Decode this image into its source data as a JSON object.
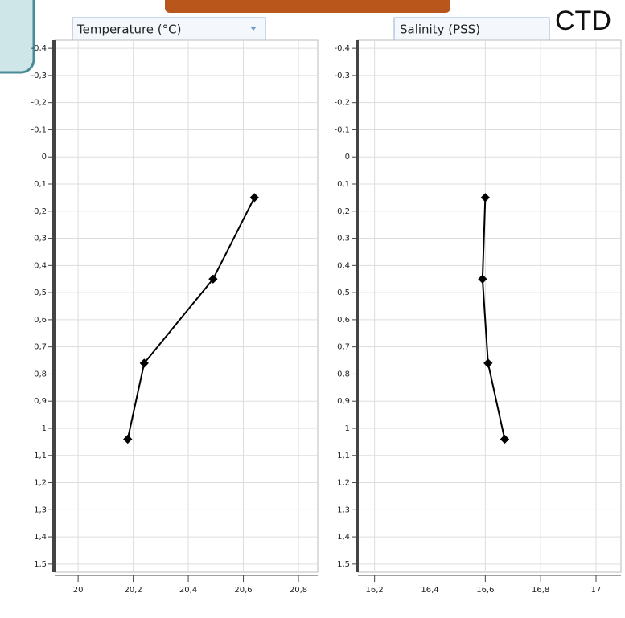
{
  "heading": "CTD",
  "chart_data": [
    {
      "type": "line",
      "title": "Temperature (°C)",
      "series": [
        {
          "color": "#000000",
          "x": [
            20.64,
            20.49,
            20.24,
            20.18
          ],
          "y": [
            0.15,
            0.45,
            0.76,
            1.04
          ]
        }
      ],
      "xlim": [
        19.915,
        20.87
      ],
      "ylim": [
        -0.43,
        1.53
      ],
      "reverse_y": true,
      "grid": true,
      "xticks": [
        20,
        {
          "value": 20.2,
          "label": "20,2"
        },
        {
          "value": 20.4,
          "label": "20,4"
        },
        {
          "value": 20.6,
          "label": "20,6"
        },
        {
          "value": 20.8,
          "label": "20,8"
        }
      ],
      "yticks": [
        {
          "value": -0.4,
          "label": "-0,4"
        },
        {
          "value": -0.3,
          "label": "-0,3"
        },
        {
          "value": -0.2,
          "label": "-0,2"
        },
        {
          "value": -0.1,
          "label": "-0,1"
        },
        0,
        {
          "value": 0.1,
          "label": "0,1"
        },
        {
          "value": 0.2,
          "label": "0,2"
        },
        {
          "value": 0.3,
          "label": "0,3"
        },
        {
          "value": 0.4,
          "label": "0,4"
        },
        {
          "value": 0.5,
          "label": "0,5"
        },
        {
          "value": 0.6,
          "label": "0,6"
        },
        {
          "value": 0.7,
          "label": "0,7"
        },
        {
          "value": 0.8,
          "label": "0,8"
        },
        {
          "value": 0.9,
          "label": "0,9"
        },
        1,
        {
          "value": 1.1,
          "label": "1,1"
        },
        {
          "value": 1.2,
          "label": "1,2"
        },
        {
          "value": 1.3,
          "label": "1,3"
        },
        {
          "value": 1.4,
          "label": "1,4"
        },
        {
          "value": 1.5,
          "label": "1,5"
        }
      ]
    },
    {
      "type": "line",
      "title": "Salinity (PSS)",
      "series": [
        {
          "color": "#000000",
          "x": [
            16.6,
            16.59,
            16.61,
            16.67
          ],
          "y": [
            0.15,
            0.45,
            0.76,
            1.04
          ]
        }
      ],
      "xlim": [
        16.14,
        17.09
      ],
      "ylim": [
        -0.43,
        1.53
      ],
      "reverse_y": true,
      "grid": true,
      "xticks": [
        {
          "value": 16.2,
          "label": "16,2"
        },
        {
          "value": 16.4,
          "label": "16,4"
        },
        {
          "value": 16.6,
          "label": "16,6"
        },
        {
          "value": 16.8,
          "label": "16,8"
        },
        17
      ],
      "yticks": [
        {
          "value": -0.4,
          "label": "-0,4"
        },
        {
          "value": -0.3,
          "label": "-0,3"
        },
        {
          "value": -0.2,
          "label": "-0,2"
        },
        {
          "value": -0.1,
          "label": "-0,1"
        },
        0,
        {
          "value": 0.1,
          "label": "0,1"
        },
        {
          "value": 0.2,
          "label": "0,2"
        },
        {
          "value": 0.3,
          "label": "0,3"
        },
        {
          "value": 0.4,
          "label": "0,4"
        },
        {
          "value": 0.5,
          "label": "0,5"
        },
        {
          "value": 0.6,
          "label": "0,6"
        },
        {
          "value": 0.7,
          "label": "0,7"
        },
        {
          "value": 0.8,
          "label": "0,8"
        },
        {
          "value": 0.9,
          "label": "0,9"
        },
        1,
        {
          "value": 1.1,
          "label": "1,1"
        },
        {
          "value": 1.2,
          "label": "1,2"
        },
        {
          "value": 1.3,
          "label": "1,3"
        },
        {
          "value": 1.4,
          "label": "1,4"
        },
        {
          "value": 1.5,
          "label": "1,5"
        }
      ]
    }
  ]
}
